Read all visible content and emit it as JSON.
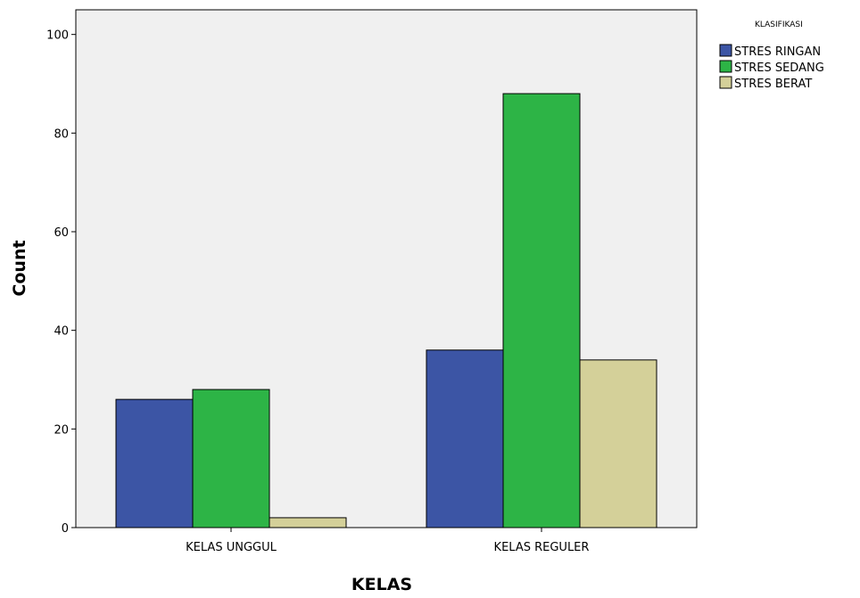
{
  "chart_data": {
    "type": "bar",
    "categories": [
      "KELAS UNGGUL",
      "KELAS REGULER"
    ],
    "series": [
      {
        "name": "STRES RINGAN",
        "values": [
          26,
          36
        ],
        "color": "#3c55a5"
      },
      {
        "name": "STRES SEDANG",
        "values": [
          28,
          88
        ],
        "color": "#2db446"
      },
      {
        "name": "STRES BERAT",
        "values": [
          2,
          34
        ],
        "color": "#d4d099"
      }
    ],
    "xlabel": "KELAS",
    "ylabel": "Count",
    "legend_title": "KLASIFIKASI",
    "legend_position": "top-right, outside plot",
    "ylim": [
      0,
      105
    ],
    "yticks": [
      "0",
      "20",
      "40",
      "60",
      "80",
      "100"
    ],
    "grid": false,
    "plot_background": "#f0f0f0"
  }
}
